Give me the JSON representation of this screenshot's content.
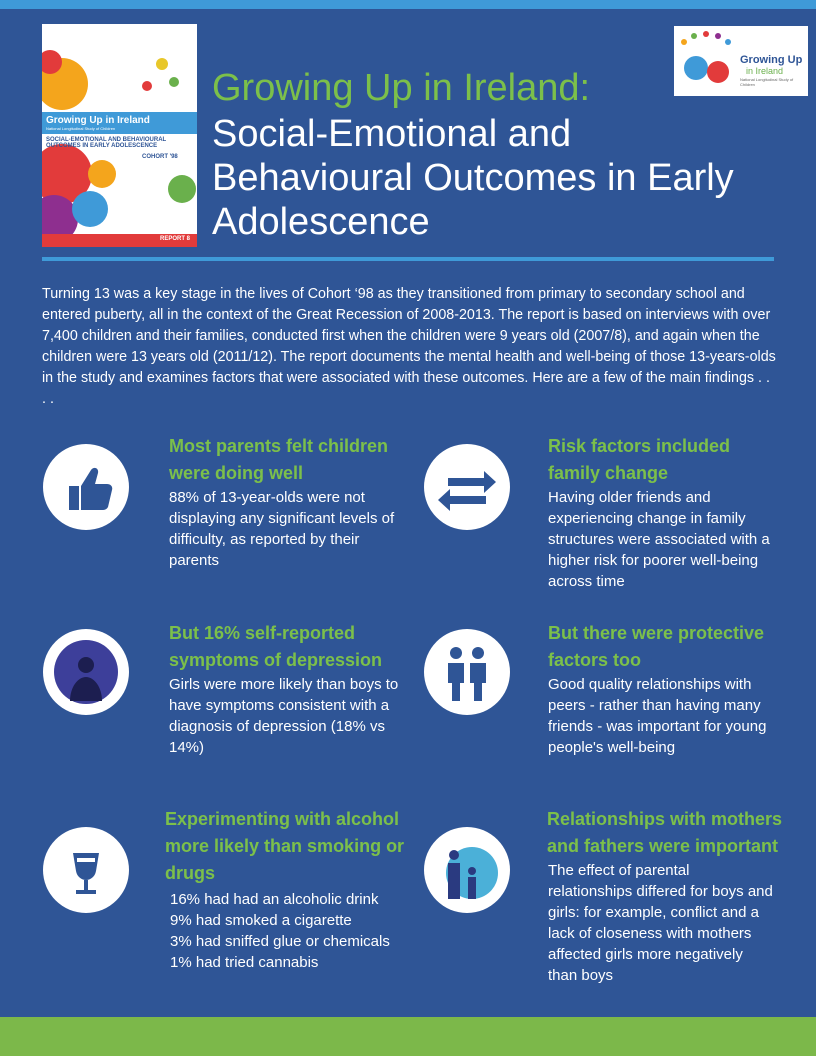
{
  "cover": {
    "title": "Growing Up in Ireland",
    "subtitle": "National Longitudinal Study of Children",
    "report_title": "SOCIAL-EMOTIONAL AND BEHAVIOURAL OUTCOMES IN EARLY ADOLESCENCE",
    "cohort": "COHORT '98",
    "report": "REPORT 8"
  },
  "logo": {
    "name_line1": "Growing Up",
    "name_line2": "in Ireland",
    "tagline": "National Longitudinal Study of Children"
  },
  "header": {
    "title": "Growing Up in Ireland:",
    "subtitle": "Social-Emotional and Behavioural Outcomes in Early Adolescence"
  },
  "intro": "Turning 13 was a key stage in the lives of Cohort ‘98 as they transitioned from primary to secondary school and entered puberty, all in the context of the Great Recession of 2008-2013. The report is based on interviews with over 7,400 children and their families, conducted first when the children were 9 years old (2007/8), and again when the children were 13 years old (2011/12). The report documents the mental health and well-being of those 13-years-olds in the study and examines factors that were associated with these outcomes. Here are a few of the main findings . . . .",
  "findings": [
    {
      "heading": "Most parents felt children were doing well",
      "body": "88% of 13-year-olds were not displaying any significant levels of difficulty, as reported by their parents"
    },
    {
      "heading": "Risk factors included family change",
      "body": "Having older friends and experiencing change in family structures were associated with a higher risk for poorer well-being across time"
    },
    {
      "heading": "But 16% self-reported symptoms of depression",
      "body": "Girls were more likely than boys to have symptoms consistent with a diagnosis of depression (18% vs 14%)"
    },
    {
      "heading": "But there were protective factors too",
      "body": "Good quality relationships with peers - rather than having many friends - was important for young people's well-being"
    },
    {
      "heading": "Experimenting with alcohol more likely than smoking or drugs",
      "lines": [
        "16% had had an alcoholic drink",
        "9% had smoked a cigarette",
        "3% had sniffed glue or chemicals",
        "1% had tried cannabis"
      ]
    },
    {
      "heading": "Relationships with mothers and fathers were important",
      "body": "The effect of parental relationships differed for boys and girls: for example, conflict and a lack of closeness with mothers affected girls more negatively than boys"
    }
  ]
}
